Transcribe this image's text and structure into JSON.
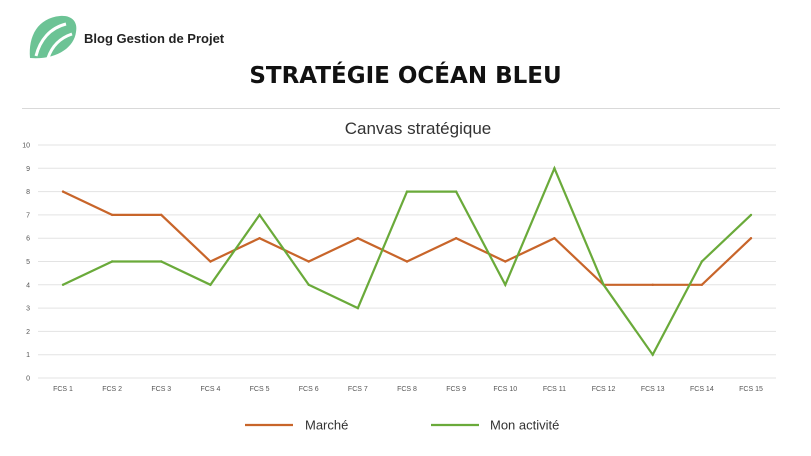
{
  "brand": {
    "name": "Blog Gestion de Projet",
    "logo_icon": "leaf-logo-icon",
    "logo_color": "#6cc395"
  },
  "page": {
    "title": "STRATÉGIE OCÉAN BLEU"
  },
  "chart_data": {
    "type": "line",
    "title": "Canvas stratégique",
    "xlabel": "",
    "ylabel": "",
    "categories": [
      "FCS 1",
      "FCS 2",
      "FCS 3",
      "FCS 4",
      "FCS 5",
      "FCS 6",
      "FCS 7",
      "FCS 8",
      "FCS 9",
      "FCS 10",
      "FCS 11",
      "FCS 12",
      "FCS 13",
      "FCS 14",
      "FCS 15"
    ],
    "yticks": [
      "0",
      "1",
      "2",
      "3",
      "4",
      "5",
      "6",
      "7",
      "8",
      "9",
      "10"
    ],
    "ylim": [
      0,
      10
    ],
    "grid": true,
    "legend": "bottom",
    "series": [
      {
        "name": "Marché",
        "color": "#c8652a",
        "values": [
          8,
          7,
          7,
          5,
          6,
          5,
          6,
          5,
          6,
          5,
          6,
          4,
          4,
          4,
          6
        ]
      },
      {
        "name": "Mon activité",
        "color": "#6aaa3a",
        "values": [
          4,
          5,
          5,
          4,
          7,
          4,
          3,
          8,
          8,
          4,
          9,
          4,
          1,
          5,
          7
        ]
      }
    ]
  }
}
